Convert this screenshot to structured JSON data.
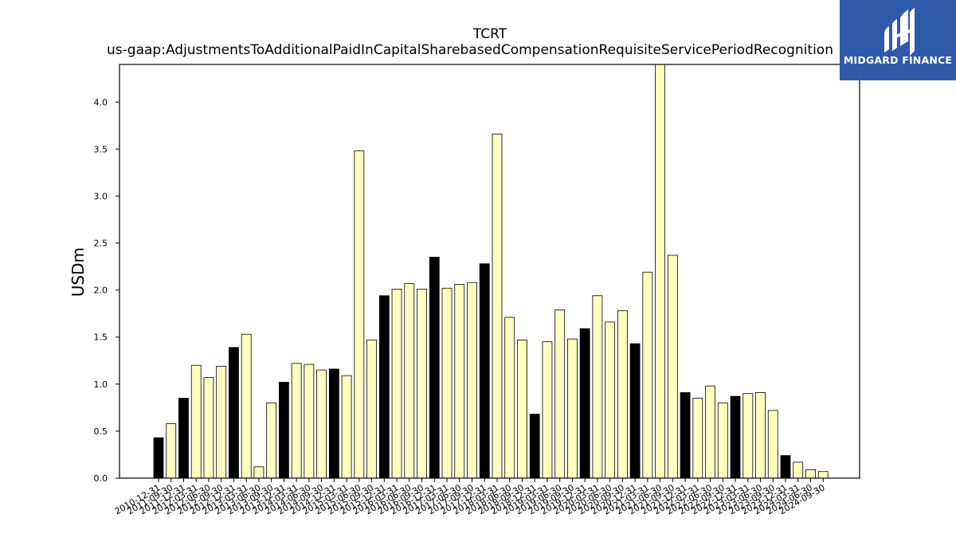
{
  "brand": {
    "name": "MIDGARD FINANCE",
    "bg_color": "#2f5aa8",
    "icon": "midgard-logo-mark"
  },
  "chart_data": {
    "type": "bar",
    "title": "TCRT",
    "subtitle": "us-gaap:AdjustmentsToAdditionalPaidInCapitalSharebasedCompensationRequisiteServicePeriodRecognition",
    "xlabel": "",
    "ylabel": "USDm",
    "ylim": [
      0,
      4.4
    ],
    "yticks": [
      0.0,
      0.5,
      1.0,
      1.5,
      2.0,
      2.5,
      3.0,
      3.5,
      4.0
    ],
    "ytick_labels": [
      "0.0",
      "0.5",
      "1.0",
      "1.5",
      "2.0",
      "2.5",
      "3.0",
      "3.5",
      "4.0"
    ],
    "colors": {
      "fiscal_year_end": "#000000",
      "quarter": "#ffffc0",
      "edge": "#000000"
    },
    "grid": false,
    "legend": "none",
    "categories": [
      "2010-12-31",
      "2011-09-30",
      "2011-12-31",
      "2012-03-31",
      "2012-06-30",
      "2012-09-30",
      "2012-12-31",
      "2013-03-31",
      "2013-06-30",
      "2013-09-30",
      "2013-12-31",
      "2014-03-31",
      "2014-06-30",
      "2014-09-30",
      "2014-12-31",
      "2015-03-31",
      "2015-06-30",
      "2015-09-30",
      "2015-12-31",
      "2016-03-31",
      "2016-06-30",
      "2016-09-30",
      "2016-12-31",
      "2017-03-31",
      "2017-06-30",
      "2017-09-30",
      "2017-12-31",
      "2018-03-31",
      "2018-06-30",
      "2018-09-30",
      "2018-12-31",
      "2019-03-31",
      "2019-06-30",
      "2019-09-30",
      "2019-12-31",
      "2020-03-31",
      "2020-06-30",
      "2020-09-30",
      "2020-12-31",
      "2021-03-31",
      "2021-06-30",
      "2021-09-30",
      "2021-12-31",
      "2022-03-31",
      "2022-06-30",
      "2022-09-30",
      "2022-12-31",
      "2023-03-31",
      "2023-06-30",
      "2023-09-30",
      "2023-12-31",
      "2024-03-31",
      "2024-06-30",
      "2024-09-30"
    ],
    "values": [
      0.43,
      0.58,
      0.85,
      1.2,
      1.07,
      1.19,
      1.39,
      1.53,
      0.12,
      0.8,
      1.02,
      1.22,
      1.21,
      1.15,
      1.16,
      1.09,
      3.48,
      1.47,
      1.94,
      2.01,
      2.07,
      2.01,
      2.35,
      2.02,
      2.06,
      2.08,
      2.28,
      3.66,
      1.71,
      1.47,
      0.68,
      1.45,
      1.79,
      1.48,
      1.59,
      1.94,
      1.66,
      1.78,
      1.43,
      2.19,
      4.4,
      2.37,
      0.91,
      0.85,
      0.98,
      0.8,
      0.87,
      0.9,
      0.91,
      0.72,
      0.24,
      0.17,
      0.09,
      0.07
    ]
  }
}
